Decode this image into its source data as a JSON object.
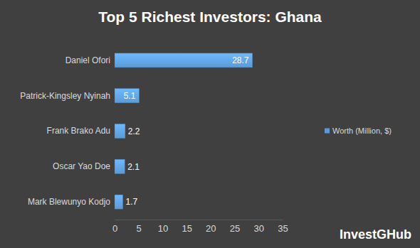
{
  "chart_data": {
    "type": "bar",
    "orientation": "horizontal",
    "title": "Top 5 Richest Investors: Ghana",
    "categories": [
      "Daniel Ofori",
      "Patrick-Kingsley Nyinah",
      "Frank Brako Adu",
      "Oscar Yao Doe",
      "Mark Blewunyo Kodjo"
    ],
    "series": [
      {
        "name": "Worth (Million, $)",
        "color": "#5b9bd5",
        "values": [
          28.7,
          5.1,
          2.2,
          2.1,
          1.7
        ]
      }
    ],
    "xlim": [
      0,
      35
    ],
    "xticks": [
      0,
      5,
      10,
      15,
      20,
      25,
      30,
      35
    ],
    "grid": false,
    "data_labels": true,
    "legend": "right",
    "annotations": [
      "InvestGHub"
    ]
  }
}
